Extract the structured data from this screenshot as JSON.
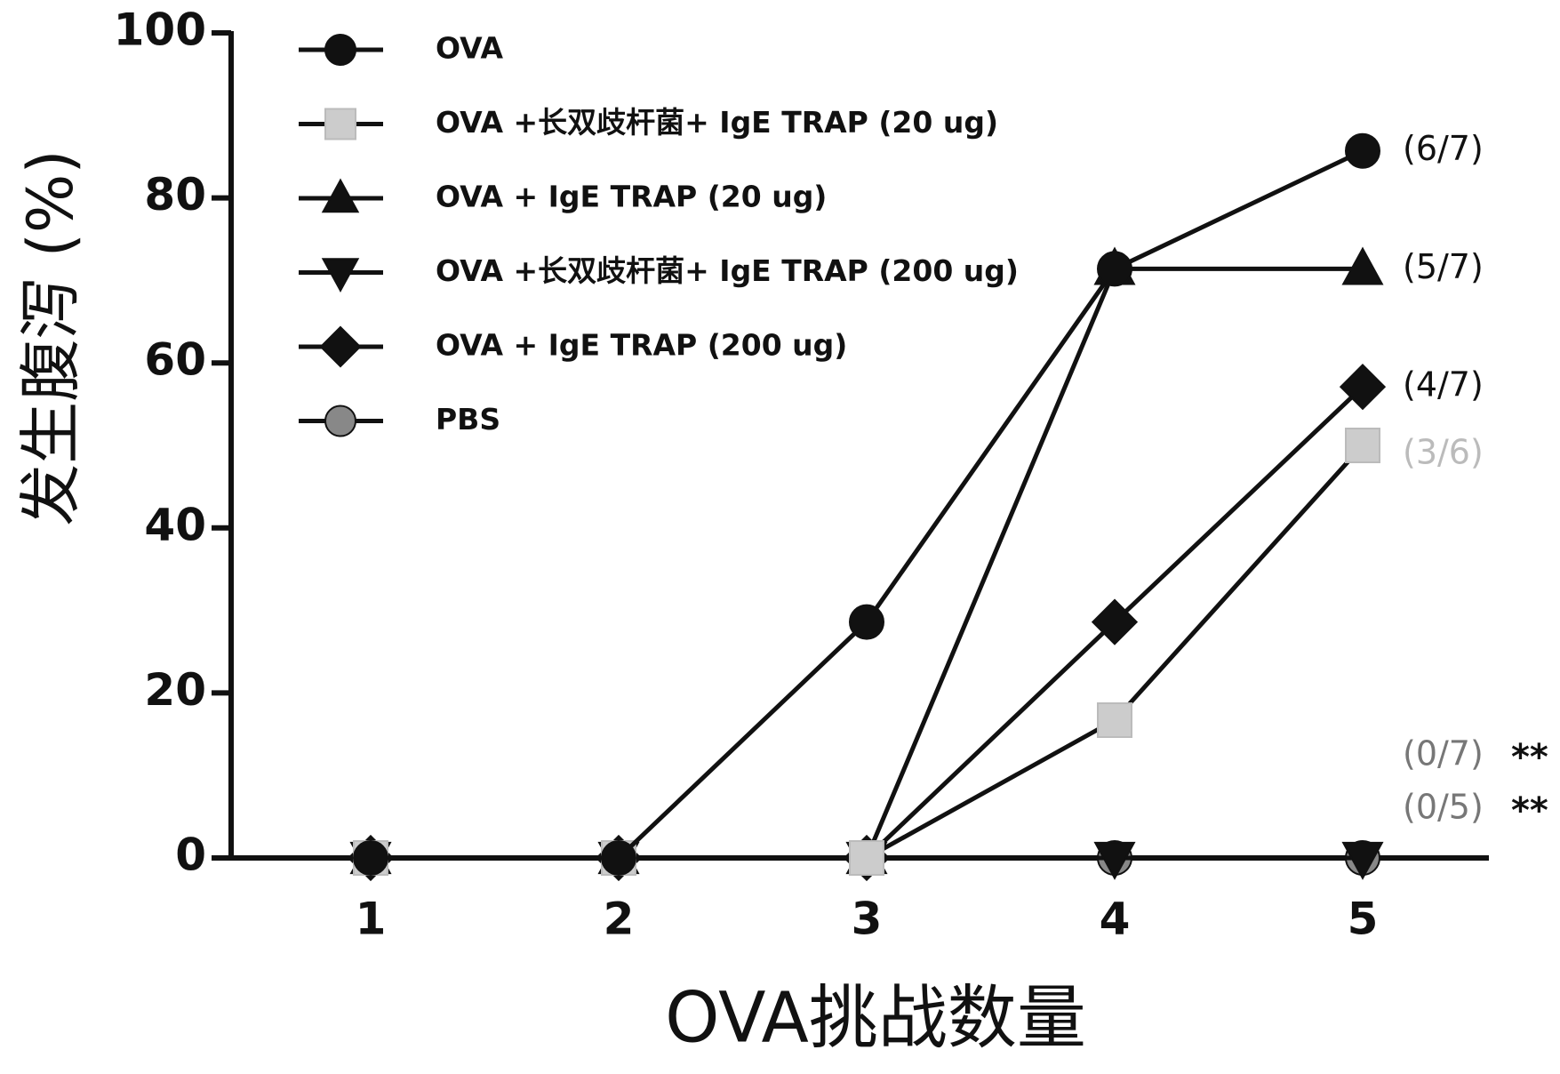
{
  "chart_data": {
    "type": "line",
    "x_label": "OVA挑战数量",
    "y_label": "发生腹泻 (%)",
    "categories": [
      "1",
      "2",
      "3",
      "4",
      "5"
    ],
    "ylim": [
      0,
      100
    ],
    "yticks": [
      0,
      20,
      40,
      60,
      80,
      100
    ],
    "series": [
      {
        "name": "OVA",
        "marker": "circle",
        "color": "#111111",
        "values": [
          0,
          0,
          28.6,
          71.4,
          85.7
        ],
        "annotation": "(6/7)",
        "annotation_color": "#111111"
      },
      {
        "name": "OVA +长双歧杆菌+ IgE TRAP (20 ug)",
        "marker": "square",
        "color": "#cccccc",
        "values": [
          0,
          0,
          0,
          16.7,
          50
        ],
        "annotation": "(3/6)",
        "annotation_color": "#bbbbbb"
      },
      {
        "name": "OVA + IgE TRAP (20 ug)",
        "marker": "triangle-up",
        "color": "#111111",
        "values": [
          0,
          0,
          0,
          71.4,
          71.4
        ],
        "annotation": "(5/7)",
        "annotation_color": "#111111"
      },
      {
        "name": "OVA +长双歧杆菌+ IgE TRAP (200 ug)",
        "marker": "triangle-down",
        "color": "#111111",
        "values": [
          0,
          0,
          0,
          0,
          0
        ],
        "annotation": "(0/7)",
        "annotation_color": "#777777",
        "significance": "**"
      },
      {
        "name": "OVA + IgE TRAP (200 ug)",
        "marker": "diamond",
        "color": "#111111",
        "values": [
          0,
          0,
          0,
          28.6,
          57.1
        ],
        "annotation": "(4/7)",
        "annotation_color": "#111111"
      },
      {
        "name": "PBS",
        "marker": "circle",
        "color": "#888888",
        "values": [
          0,
          0,
          0,
          0,
          0
        ],
        "annotation": "(0/5)",
        "annotation_color": "#777777",
        "significance": "**"
      }
    ]
  }
}
